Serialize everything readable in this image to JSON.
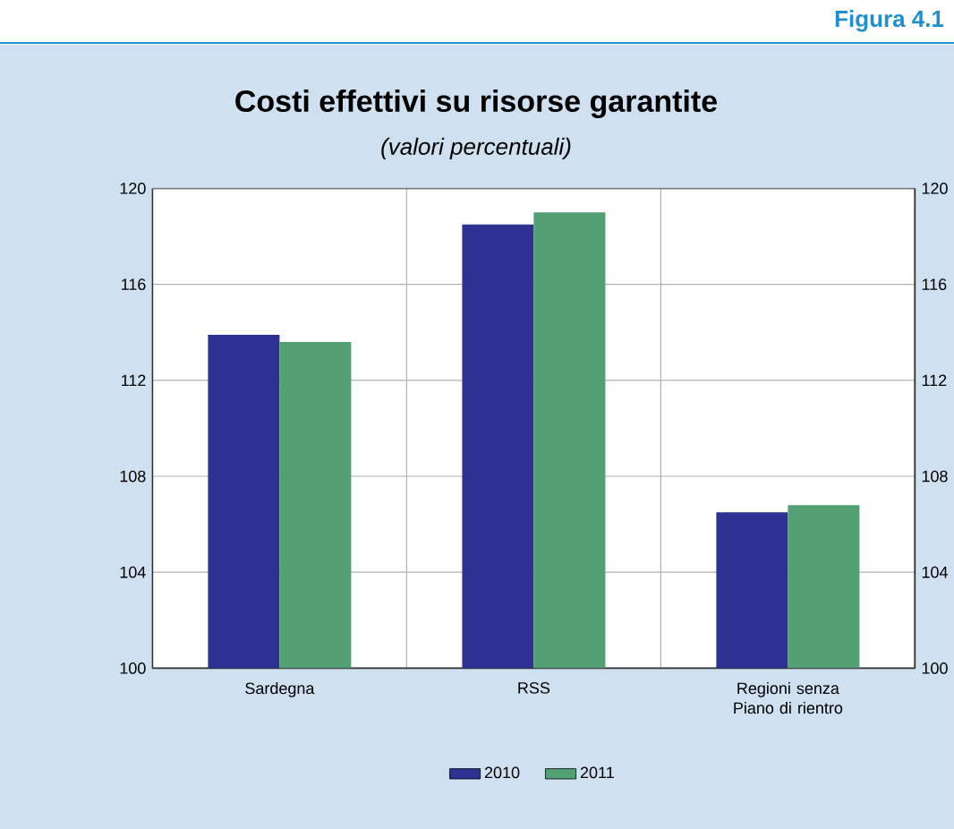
{
  "chart_data": {
    "type": "bar",
    "title": "Costi effettivi su risorse garantite",
    "subtitle": "(valori percentuali)",
    "annotations": [
      "Figura 4.1"
    ],
    "categories": [
      "Sardegna",
      "RSS",
      "Regioni senza Piano di rientro"
    ],
    "series": [
      {
        "name": "2010",
        "color": "#2e3192",
        "values": [
          113.9,
          118.5,
          106.5
        ]
      },
      {
        "name": "2011",
        "color": "#52a073",
        "values": [
          113.6,
          119.0,
          106.8
        ]
      }
    ],
    "ylim": [
      100,
      120
    ],
    "yticks": [
      100,
      104,
      108,
      112,
      116,
      120
    ],
    "y2lim": [
      100,
      120
    ],
    "y2ticks": [
      100,
      104,
      108,
      112,
      116,
      120
    ],
    "grid": true,
    "legend": "bottom"
  }
}
